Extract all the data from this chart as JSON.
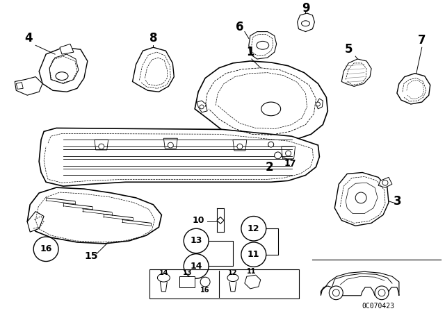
{
  "background_color": "#ffffff",
  "fig_width": 6.4,
  "fig_height": 4.48,
  "dpi": 100,
  "text_color": "#000000",
  "line_color": "#000000",
  "diagram_code": "0C070423"
}
